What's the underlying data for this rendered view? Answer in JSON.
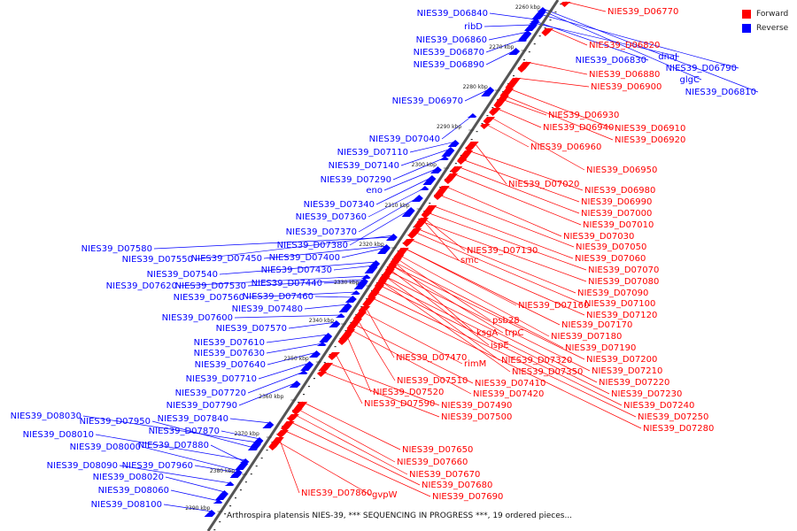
{
  "caption": "Arthrospira platensis NIES-39, *** SEQUENCING IN PROGRESS ***, 19 ordered pieces...",
  "legend": [
    {
      "label": "Forward",
      "color": "#ff0000"
    },
    {
      "label": "Reverse",
      "color": "#0000ff"
    }
  ],
  "colors": {
    "forward": "#ff0000",
    "reverse": "#0000ff",
    "backbone": "#555555"
  },
  "ticks": [
    "2260 kbp",
    "2270 kbp",
    "2280 kbp",
    "2290 kbp",
    "2300 kbp",
    "2310 kbp",
    "2320 kbp",
    "2330 kbp",
    "2340 kbp",
    "2350 kbp",
    "2360 kbp",
    "2370 kbp",
    "2380 kbp",
    "2390 kbp"
  ],
  "reverse_labels": [
    "NIES39_D06840",
    "ribD",
    "NIES39_D06860",
    "NIES39_D06870",
    "NIES39_D06890",
    "NIES39_D06970",
    "NIES39_D07040",
    "NIES39_D07110",
    "NIES39_D07140",
    "NIES39_D07290",
    "eno",
    "NIES39_D07340",
    "NIES39_D07360",
    "NIES39_D07370",
    "NIES39_D07380",
    "NIES39_D07580",
    "NIES39_D07550",
    "NIES39_D07450",
    "NIES39_D07400",
    "NIES39_D07540",
    "NIES39_D07430",
    "NIES39_D07620",
    "NIES39_D07530",
    "NIES39_D07440",
    "NIES39_D07560",
    "NIES39_D07460",
    "NIES39_D07480",
    "NIES39_D07600",
    "NIES39_D07570",
    "NIES39_D07610",
    "NIES39_D07630",
    "NIES39_D07640",
    "NIES39_D07710",
    "NIES39_D07720",
    "NIES39_D07790",
    "NIES39_D08030",
    "NIES39_D07950",
    "NIES39_D07840",
    "NIES39_D07870",
    "NIES39_D08010",
    "NIES39_D08000",
    "NIES39_D07880",
    "NIES39_D08090",
    "NIES39_D07960",
    "NIES39_D08020",
    "NIES39_D08060",
    "NIES39_D08100",
    "dnaJ",
    "NIES39_D06830",
    "NIES39_D06790",
    "glgC",
    "NIES39_D06810"
  ],
  "forward_labels": [
    "NIES39_D06770",
    "NIES39_D06820",
    "NIES39_D06880",
    "NIES39_D06900",
    "NIES39_D06930",
    "NIES39_D06940",
    "NIES39_D06910",
    "NIES39_D06920",
    "NIES39_D06960",
    "NIES39_D06950",
    "NIES39_D07020",
    "NIES39_D06980",
    "NIES39_D06990",
    "NIES39_D07000",
    "NIES39_D07010",
    "NIES39_D07030",
    "NIES39_D07050",
    "NIES39_D07130",
    "smc",
    "NIES39_D07060",
    "NIES39_D07070",
    "NIES39_D07080",
    "NIES39_D07090",
    "NIES39_D07160",
    "NIES39_D07100",
    "NIES39_D07120",
    "psb28",
    "NIES39_D07170",
    "ksgA",
    "trpC",
    "NIES39_D07180",
    "ispE",
    "NIES39_D07190",
    "NIES39_D07470",
    "rimM",
    "NIES39_D07320",
    "NIES39_D07200",
    "NIES39_D07350",
    "NIES39_D07210",
    "NIES39_D07510",
    "NIES39_D07410",
    "NIES39_D07220",
    "NIES39_D07520",
    "NIES39_D07420",
    "NIES39_D07230",
    "NIES39_D07590",
    "NIES39_D07490",
    "NIES39_D07240",
    "NIES39_D07500",
    "NIES39_D07250",
    "NIES39_D07280",
    "NIES39_D07650",
    "NIES39_D07660",
    "NIES39_D07670",
    "NIES39_D07680",
    "NIES39_D07860",
    "gvpW",
    "NIES39_D07690"
  ]
}
